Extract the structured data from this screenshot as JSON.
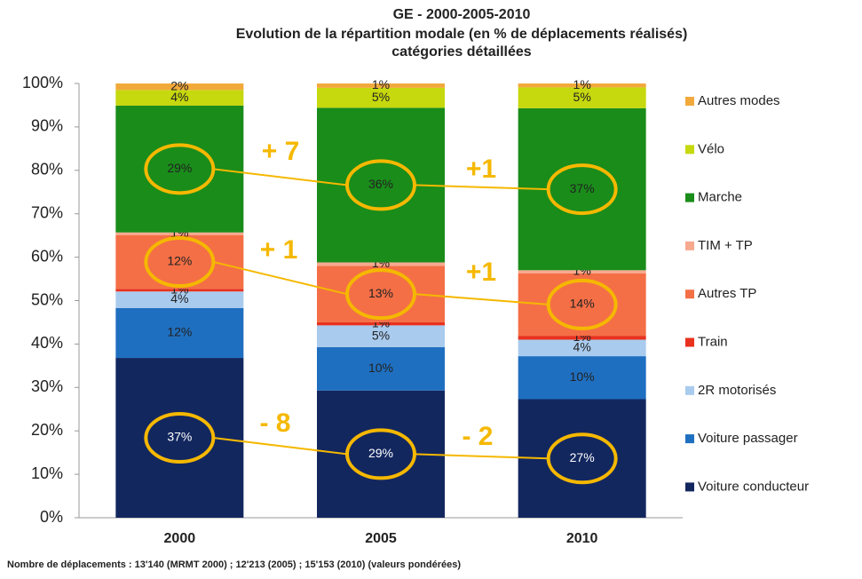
{
  "chart_data": {
    "type": "stacked_bar",
    "title": [
      "GE - 2000-2005-2010",
      "Evolution de la répartition modale (en % de déplacements réalisés)",
      "catégories détaillées"
    ],
    "categories": [
      "2000",
      "2005",
      "2010"
    ],
    "series": [
      {
        "name": "Voiture conducteur",
        "color": "#13275f",
        "values": [
          36.8,
          29.3,
          27.3
        ],
        "value_labels": [
          "37%",
          "29%",
          "27%"
        ]
      },
      {
        "name": "Voiture passager",
        "color": "#1f6fc0",
        "values": [
          11.5,
          10.0,
          9.9
        ],
        "value_labels": [
          "12%",
          "10%",
          "10%"
        ]
      },
      {
        "name": "2R motorisés",
        "color": "#a9cbee",
        "values": [
          3.8,
          5.0,
          3.8
        ],
        "value_labels": [
          "4%",
          "5%",
          "4%"
        ]
      },
      {
        "name": "Train",
        "color": "#e8321e",
        "values": [
          0.6,
          0.7,
          0.9
        ],
        "value_labels": [
          "1%",
          "1%",
          "1%"
        ]
      },
      {
        "name": "Autres TP",
        "color": "#f46f46",
        "values": [
          12.4,
          13.0,
          14.4
        ],
        "value_labels": [
          "12%",
          "13%",
          "14%"
        ]
      },
      {
        "name": "TIM + TP",
        "color": "#f6a98f",
        "values": [
          0.6,
          0.8,
          0.7
        ],
        "value_labels": [
          "1%",
          "1%",
          "1%"
        ]
      },
      {
        "name": "Marche",
        "color": "#1a8c1a",
        "values": [
          29.2,
          35.6,
          37.3
        ],
        "value_labels": [
          "29%",
          "36%",
          "37%"
        ]
      },
      {
        "name": "Vélo",
        "color": "#c6d80e",
        "values": [
          3.6,
          4.6,
          4.8
        ],
        "value_labels": [
          "4%",
          "5%",
          "5%"
        ]
      },
      {
        "name": "Autres modes",
        "color": "#f2a93b",
        "values": [
          1.5,
          1.0,
          0.9
        ],
        "value_labels": [
          "2%",
          "1%",
          "1%"
        ]
      }
    ],
    "ylim": [
      0,
      100
    ],
    "yticks": [
      {
        "value": 0,
        "label": "0%"
      },
      {
        "value": 10,
        "label": "10%"
      },
      {
        "value": 20,
        "label": "20%"
      },
      {
        "value": 30,
        "label": "30%"
      },
      {
        "value": 40,
        "label": "40%"
      },
      {
        "value": 50,
        "label": "50%"
      },
      {
        "value": 60,
        "label": "60%"
      },
      {
        "value": 70,
        "label": "70%"
      },
      {
        "value": 80,
        "label": "80%"
      },
      {
        "value": 90,
        "label": "90%"
      },
      {
        "value": 100,
        "label": "100%"
      }
    ],
    "annotations": [
      "+ 7",
      "+1",
      "+ 1",
      "+1",
      "- 8",
      "- 2"
    ],
    "highlight_color": "#f5b800",
    "footnote": "Nombre de déplacements : 13'140 (MRMT 2000) ; 12'213 (2005) ; 15'153 (2010) (valeurs pondérées)"
  }
}
